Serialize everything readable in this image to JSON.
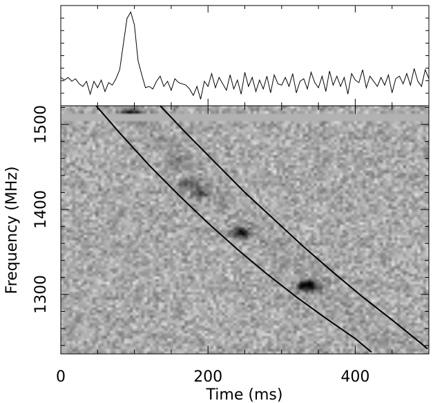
{
  "chart_data": [
    {
      "type": "line",
      "panel": "pulse-profile",
      "description_free": true,
      "x_unit_from_shared_axis": "ms",
      "xlim": [
        0,
        500
      ],
      "x": [
        0,
        5,
        10,
        15,
        20,
        25,
        30,
        35,
        40,
        45,
        50,
        55,
        60,
        65,
        70,
        75,
        80,
        85,
        90,
        95,
        100,
        105,
        110,
        115,
        120,
        125,
        130,
        135,
        140,
        145,
        150,
        155,
        160,
        165,
        170,
        175,
        180,
        185,
        190,
        195,
        200,
        205,
        210,
        215,
        220,
        225,
        230,
        235,
        240,
        245,
        250,
        255,
        260,
        265,
        270,
        275,
        280,
        285,
        290,
        295,
        300,
        305,
        310,
        315,
        320,
        325,
        330,
        335,
        340,
        345,
        350,
        355,
        360,
        365,
        370,
        375,
        380,
        385,
        390,
        395,
        400,
        405,
        410,
        415,
        420,
        425,
        430,
        435,
        440,
        445,
        450,
        455,
        460,
        465,
        470,
        475,
        480,
        485,
        490,
        495,
        500
      ],
      "values": [
        0.09,
        0.07,
        0.09,
        0.06,
        0.08,
        0.04,
        0.02,
        0.06,
        -0.04,
        0.06,
        0.01,
        0.07,
        -0.02,
        0.05,
        0.03,
        0.08,
        0.15,
        0.35,
        0.55,
        0.6,
        0.5,
        0.22,
        0.11,
        0.01,
        0.02,
        0.0,
        0.06,
        0.1,
        0.02,
        0.06,
        -0.01,
        0.08,
        0.05,
        0.04,
        0.03,
        0.0,
        -0.05,
        0.02,
        -0.08,
        0.06,
        0.02,
        0.12,
        0.01,
        0.09,
        0.04,
        -0.01,
        0.11,
        0.0,
        0.07,
        -0.04,
        0.13,
        0.02,
        0.09,
        -0.02,
        0.07,
        0.0,
        0.1,
        -0.03,
        0.11,
        0.04,
        0.03,
        0.09,
        0.02,
        0.12,
        -0.03,
        0.06,
        0.08,
        0.0,
        0.13,
        0.05,
        0.01,
        0.1,
        -0.02,
        0.14,
        0.03,
        0.1,
        0.02,
        0.09,
        -0.04,
        0.12,
        0.07,
        0.05,
        0.15,
        0.01,
        0.1,
        0.06,
        0.02,
        0.09,
        0.03,
        0.11,
        -0.03,
        0.08,
        0.1,
        0.04,
        0.12,
        0.03,
        0.16,
        0.06,
        0.02,
        0.15,
        0.08
      ]
    },
    {
      "type": "heatmap",
      "panel": "dynamic-spectrum",
      "xlabel": "Time (ms)",
      "ylabel": "Frequency (MHz)",
      "xlim": [
        0,
        500
      ],
      "ylim": [
        1230,
        1522
      ],
      "x_ticks": [
        0,
        200,
        400
      ],
      "y_ticks": [
        1300,
        1400,
        1500
      ],
      "colormap": "grayscale, dark = high intensity",
      "rfi_band_mhz": [
        1505,
        1512
      ],
      "signal_clumps": [
        {
          "t": 95,
          "f": 1512,
          "strength": 1.0
        },
        {
          "t": 155,
          "f": 1455,
          "strength": 0.25
        },
        {
          "t": 175,
          "f": 1430,
          "strength": 0.45
        },
        {
          "t": 190,
          "f": 1418,
          "strength": 0.4
        },
        {
          "t": 245,
          "f": 1373,
          "strength": 0.75
        },
        {
          "t": 335,
          "f": 1310,
          "strength": 1.0
        }
      ],
      "dispersion_curves": [
        {
          "points": [
            [
              48,
              1522
            ],
            [
              80,
              1490
            ],
            [
              120,
              1452
            ],
            [
              160,
              1417
            ],
            [
              200,
              1384
            ],
            [
              240,
              1353
            ],
            [
              280,
              1324
            ],
            [
              320,
              1297
            ],
            [
              360,
              1272
            ],
            [
              400,
              1248
            ],
            [
              422,
              1232
            ]
          ]
        },
        {
          "points": [
            [
              135,
              1522
            ],
            [
              170,
              1490
            ],
            [
              210,
              1455
            ],
            [
              250,
              1420
            ],
            [
              290,
              1388
            ],
            [
              330,
              1356
            ],
            [
              370,
              1326
            ],
            [
              410,
              1297
            ],
            [
              450,
              1270
            ],
            [
              490,
              1242
            ],
            [
              498,
              1236
            ]
          ]
        }
      ]
    }
  ]
}
